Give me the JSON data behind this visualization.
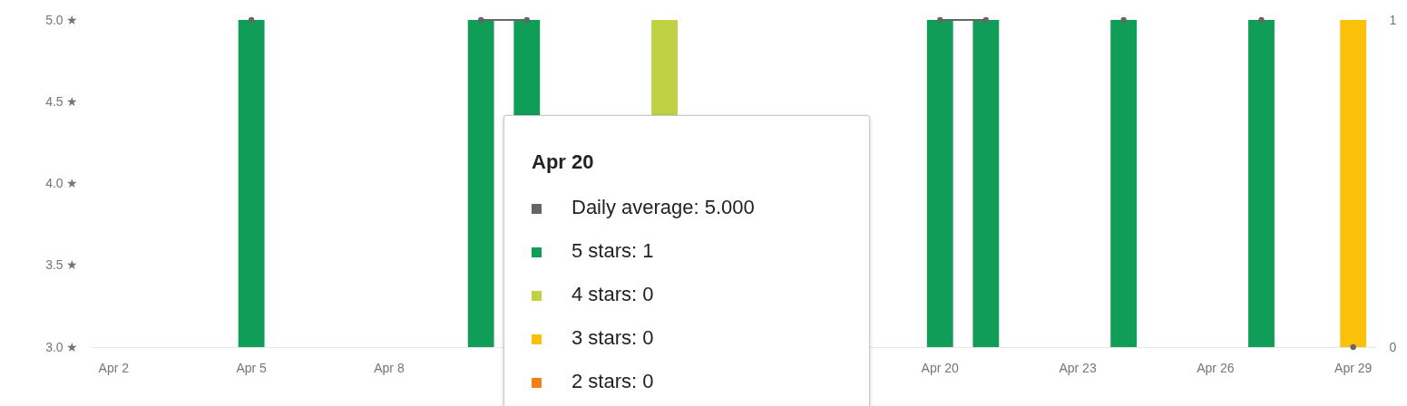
{
  "chart_data": {
    "type": "bar",
    "categories": [
      "Apr 2",
      null,
      null,
      "Apr 5",
      null,
      null,
      "Apr 8",
      null,
      null,
      null,
      null,
      null,
      null,
      null,
      null,
      null,
      null,
      null,
      "Apr 20",
      null,
      null,
      "Apr 23",
      null,
      null,
      "Apr 26",
      null,
      null,
      "Apr 29"
    ],
    "ylim": [
      3,
      5
    ],
    "yticks": [
      {
        "value": 3,
        "label": "3.0 ★"
      },
      {
        "value": 3.5,
        "label": "3.5 ★"
      },
      {
        "value": 4,
        "label": "4.0 ★"
      },
      {
        "value": 4.5,
        "label": "4.5 ★"
      },
      {
        "value": 5,
        "label": "5.0 ★"
      }
    ],
    "y2lim": [
      0,
      1
    ],
    "y2ticks": [
      0,
      1
    ],
    "series": [
      {
        "type": "line",
        "axis": "y",
        "color": "#666666",
        "marker": "circle",
        "line_style": "solid",
        "values": [
          null,
          null,
          null,
          5,
          null,
          null,
          null,
          null,
          5,
          5,
          null,
          null,
          null,
          null,
          null,
          null,
          null,
          null,
          5,
          5,
          null,
          null,
          5,
          null,
          null,
          5,
          null,
          3
        ]
      },
      {
        "axis": "y2",
        "color": "#0f9d58",
        "values": [
          null,
          null,
          null,
          1,
          null,
          null,
          null,
          null,
          1,
          1,
          null,
          null,
          null,
          null,
          null,
          null,
          null,
          null,
          1,
          1,
          null,
          null,
          1,
          null,
          null,
          1,
          null,
          null
        ]
      },
      {
        "axis": "y2",
        "color": "#c0d144",
        "values": [
          null,
          null,
          null,
          null,
          null,
          null,
          null,
          null,
          null,
          null,
          null,
          null,
          1,
          null,
          null,
          null,
          null,
          null,
          0,
          null,
          null,
          null,
          null,
          null,
          null,
          null,
          null,
          null
        ]
      },
      {
        "axis": "y2",
        "color": "#fbc00a",
        "values": [
          null,
          null,
          null,
          null,
          null,
          null,
          null,
          null,
          null,
          null,
          null,
          null,
          null,
          null,
          null,
          null,
          null,
          null,
          0,
          null,
          null,
          null,
          null,
          null,
          null,
          null,
          null,
          1
        ]
      },
      {
        "axis": "y2",
        "color": "#f57f17",
        "values": [
          null,
          null,
          null,
          null,
          null,
          null,
          null,
          null,
          null,
          null,
          null,
          null,
          null,
          null,
          null,
          null,
          null,
          null,
          0,
          null,
          null,
          null,
          null,
          null,
          null,
          null,
          null,
          null
        ]
      }
    ],
    "annotations": [
      "Apr 20",
      "Daily average: 5.000",
      "5 stars: 1",
      "4 stars: 0",
      "3 stars: 0",
      "2 stars: 0"
    ]
  }
}
